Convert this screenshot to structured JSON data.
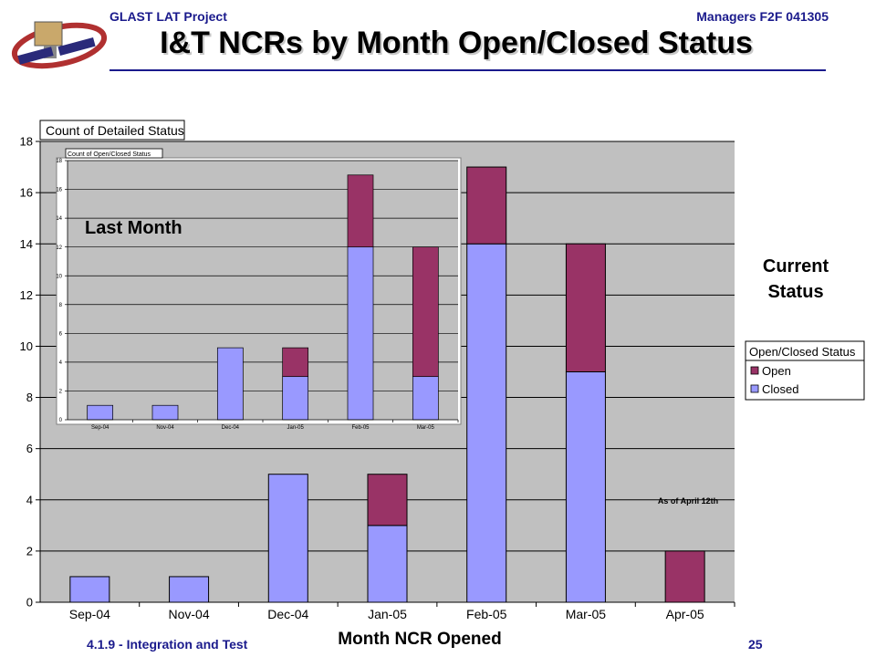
{
  "header": {
    "left": "GLAST LAT Project",
    "right": "Managers F2F 041305",
    "title": "I&T NCRs by Month Open/Closed Status"
  },
  "footer": {
    "left": "4.1.9 - Integration and Test",
    "page": "25"
  },
  "colors": {
    "closed": "#9999ff",
    "open": "#993366",
    "plot_bg": "#c0c0c0",
    "header_blue": "#1a1a8c"
  },
  "chart_data": [
    {
      "type": "bar",
      "stacked": true,
      "title": "Count of Detailed Status",
      "xlabel": "Month NCR Opened",
      "ylabel": "",
      "ylim": [
        0,
        18
      ],
      "yticks": [
        0,
        2,
        4,
        6,
        8,
        10,
        12,
        14,
        16,
        18
      ],
      "grid": true,
      "categories": [
        "Sep-04",
        "Nov-04",
        "Dec-04",
        "Jan-05",
        "Feb-05",
        "Mar-05",
        "Apr-05"
      ],
      "series": [
        {
          "name": "Closed",
          "values": [
            1,
            1,
            5,
            3,
            14,
            9,
            0
          ]
        },
        {
          "name": "Open",
          "values": [
            0,
            0,
            0,
            2,
            3,
            5,
            2
          ]
        }
      ],
      "legend": {
        "title": "Open/Closed Status",
        "placement": "right",
        "entries": [
          "Open",
          "Closed"
        ]
      },
      "annotations": [
        "Current Status",
        "As of April 12th"
      ]
    },
    {
      "type": "bar",
      "stacked": true,
      "title": "Count of Open/Closed Status",
      "xlabel": "",
      "ylabel": "",
      "ylim": [
        0,
        18
      ],
      "yticks": [
        0,
        2,
        4,
        6,
        8,
        10,
        12,
        14,
        16,
        18
      ],
      "grid": true,
      "categories": [
        "Sep-04",
        "Nov-04",
        "Dec-04",
        "Jan-05",
        "Feb-05",
        "Mar-05"
      ],
      "series": [
        {
          "name": "Closed",
          "values": [
            1,
            1,
            5,
            3,
            12,
            3
          ]
        },
        {
          "name": "Open",
          "values": [
            0,
            0,
            0,
            2,
            5,
            9
          ]
        }
      ],
      "annotations": [
        "Last Month"
      ]
    }
  ]
}
